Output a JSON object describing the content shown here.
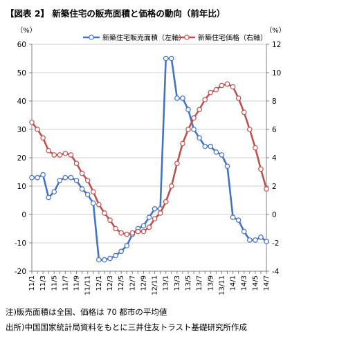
{
  "title": "【図表 2】 新築住宅の販売面積と価格の動向（前年比）",
  "notes": [
    "注)販売面積は全国、価格は 70 都市の平均値",
    "出所)中国国家統計局資料をもとに三井住友トラスト基礎研究所作成"
  ],
  "chart_data": {
    "type": "line",
    "title": "【図表 2】 新築住宅の販売面積と価格の動向（前年比）",
    "left_axis": {
      "unit_label": "（%）",
      "ylim": [
        -20,
        60
      ],
      "ticks": [
        -20,
        -10,
        0,
        10,
        20,
        30,
        40,
        50,
        60
      ]
    },
    "right_axis": {
      "unit_label": "（%）",
      "ylim": [
        -4,
        12
      ],
      "ticks": [
        -4,
        -2,
        0,
        2,
        4,
        6,
        8,
        10,
        12
      ]
    },
    "grid": "horizontal",
    "legend_position": "top",
    "x": [
      "11/1",
      "11/2",
      "11/3",
      "11/4",
      "11/5",
      "11/6",
      "11/7",
      "11/8",
      "11/9",
      "11/10",
      "11/11",
      "11/12",
      "12/1",
      "12/2",
      "12/3",
      "12/4",
      "12/5",
      "12/6",
      "12/7",
      "12/8",
      "12/9",
      "12/10",
      "12/11",
      "12/12",
      "13/1",
      "13/2",
      "13/3",
      "13/4",
      "13/5",
      "13/6",
      "13/7",
      "13/8",
      "13/9",
      "13/10",
      "13/11",
      "13/12",
      "14/1",
      "14/2",
      "14/3",
      "14/4",
      "14/5",
      "14/6",
      "14/7"
    ],
    "x_tick_labels": [
      "11/1",
      "11/3",
      "11/5",
      "11/7",
      "11/9",
      "11/11",
      "12/1",
      "12/3",
      "12/5",
      "12/7",
      "12/9",
      "12/11",
      "13/1",
      "13/3",
      "13/5",
      "13/7",
      "13/9",
      "13/11",
      "14/1",
      "14/3",
      "14/5",
      "14/7"
    ],
    "series": [
      {
        "name": "新築住宅販売面積（左軸）",
        "axis": "left",
        "color": "#4472C4",
        "values": [
          13,
          13,
          14,
          6,
          8,
          12,
          13,
          13,
          12,
          9,
          7,
          4,
          -16,
          -16,
          -15.5,
          -14.5,
          -13,
          -11,
          -7,
          -5,
          -4,
          -1,
          2,
          2,
          55,
          55,
          41,
          41,
          37,
          30,
          27,
          24,
          24,
          22,
          21,
          17,
          -1,
          -2,
          -6,
          -9,
          -9,
          -8,
          -9.5
        ]
      },
      {
        "name": "新築住宅価格（右軸）",
        "axis": "right",
        "color": "#C0504D",
        "values": [
          6.5,
          6,
          5.4,
          4.5,
          4.2,
          4.2,
          4.3,
          4.2,
          3.6,
          2.9,
          2.4,
          1.6,
          0.7,
          0.1,
          -0.4,
          -1,
          -1.3,
          -1.4,
          -1.3,
          -1.2,
          -1.2,
          -0.9,
          -0.3,
          0.1,
          0.9,
          2,
          3.6,
          5,
          6,
          6.8,
          7.4,
          8.1,
          8.6,
          8.8,
          9.1,
          9.2,
          9,
          8.2,
          7.2,
          6,
          4.7,
          3.2,
          1.8
        ]
      }
    ]
  }
}
